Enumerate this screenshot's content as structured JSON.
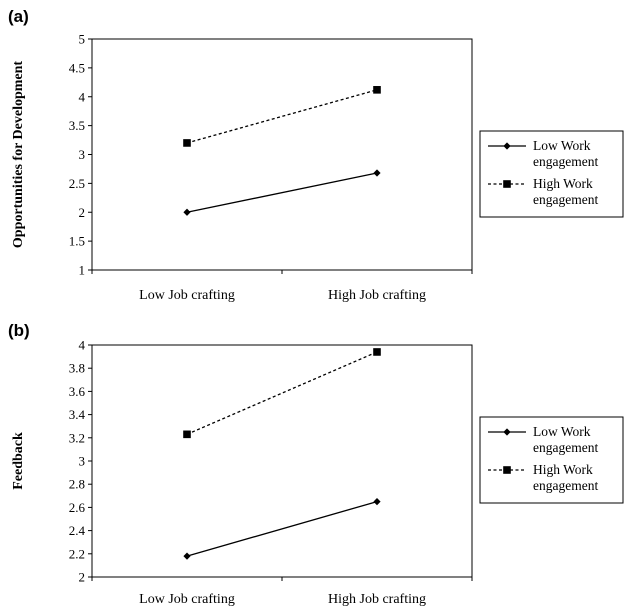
{
  "chart_data": [
    {
      "type": "line",
      "panel_label": "(a)",
      "title": "",
      "ylabel": "Opportunities for Development",
      "xlabel": "",
      "categories": [
        "Low Job crafting",
        "High Job crafting"
      ],
      "ylim": [
        1,
        5
      ],
      "yticks": [
        "1",
        "1.5",
        "2",
        "2.5",
        "3",
        "3.5",
        "4",
        "4.5",
        "5"
      ],
      "grid": false,
      "legend_position": "right",
      "series": [
        {
          "name": "Low Work engagement",
          "name_lines": [
            "Low Work",
            "engagement"
          ],
          "values": [
            2.0,
            2.68
          ],
          "marker": "diamond",
          "dash": "solid",
          "color": "#000000"
        },
        {
          "name": "High Work engagement",
          "name_lines": [
            "High Work",
            "engagement"
          ],
          "values": [
            3.2,
            4.12
          ],
          "marker": "square",
          "dash": "dashed",
          "color": "#000000"
        }
      ]
    },
    {
      "type": "line",
      "panel_label": "(b)",
      "title": "",
      "ylabel": "Feedback",
      "xlabel": "",
      "categories": [
        "Low Job crafting",
        "High Job crafting"
      ],
      "ylim": [
        2,
        4
      ],
      "yticks": [
        "2",
        "2.2",
        "2.4",
        "2.6",
        "2.8",
        "3",
        "3.2",
        "3.4",
        "3.6",
        "3.8",
        "4"
      ],
      "grid": false,
      "legend_position": "right",
      "series": [
        {
          "name": "Low Work engagement",
          "name_lines": [
            "Low Work",
            "engagement"
          ],
          "values": [
            2.18,
            2.65
          ],
          "marker": "diamond",
          "dash": "solid",
          "color": "#000000"
        },
        {
          "name": "High Work engagement",
          "name_lines": [
            "High Work",
            "engagement"
          ],
          "values": [
            3.23,
            3.94
          ],
          "marker": "square",
          "dash": "dashed",
          "color": "#000000"
        }
      ]
    }
  ]
}
